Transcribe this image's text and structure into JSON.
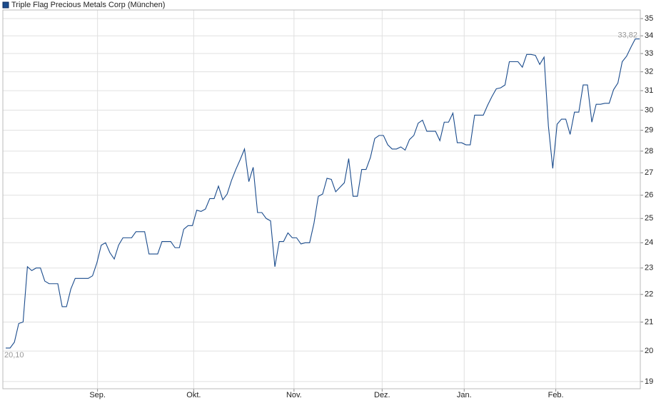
{
  "chart_data": {
    "type": "line",
    "series": [
      {
        "name": "Triple Flag Precious Metals Corp (München)",
        "color": "#1a4b8c",
        "values": [
          20.1,
          20.1,
          20.3,
          20.95,
          21.0,
          23.05,
          22.9,
          23.0,
          23.0,
          22.5,
          22.4,
          22.4,
          22.4,
          21.55,
          21.55,
          22.2,
          22.6,
          22.6,
          22.6,
          22.6,
          22.7,
          23.2,
          23.9,
          24.0,
          23.6,
          23.35,
          23.9,
          24.2,
          24.2,
          24.2,
          24.45,
          24.45,
          24.45,
          23.55,
          23.55,
          23.55,
          24.05,
          24.05,
          24.05,
          23.8,
          23.8,
          24.55,
          24.7,
          24.7,
          25.35,
          25.3,
          25.4,
          25.85,
          25.85,
          26.4,
          25.8,
          26.05,
          26.65,
          27.15,
          27.6,
          28.1,
          26.6,
          27.25,
          25.25,
          25.25,
          25.0,
          24.9,
          23.05,
          24.05,
          24.05,
          24.4,
          24.2,
          24.2,
          23.95,
          24.0,
          24.0,
          24.8,
          25.95,
          26.05,
          26.75,
          26.7,
          26.15,
          26.35,
          26.55,
          27.65,
          25.95,
          25.95,
          27.15,
          27.15,
          27.7,
          28.6,
          28.75,
          28.75,
          28.3,
          28.1,
          28.1,
          28.2,
          28.05,
          28.55,
          28.75,
          29.35,
          29.5,
          28.95,
          28.95,
          28.95,
          28.5,
          29.4,
          29.4,
          29.85,
          28.4,
          28.4,
          28.3,
          28.3,
          29.75,
          29.75,
          29.75,
          30.25,
          30.7,
          31.1,
          31.15,
          31.3,
          32.55,
          32.55,
          32.55,
          32.25,
          32.95,
          32.95,
          32.9,
          32.4,
          32.8,
          29.2,
          27.2,
          29.3,
          29.55,
          29.55,
          28.8,
          29.9,
          29.9,
          31.3,
          31.3,
          29.4,
          30.3,
          30.3,
          30.35,
          30.35,
          31.05,
          31.4,
          32.55,
          32.85,
          33.35,
          33.82,
          33.82
        ],
        "value_labels": [
          "20,10",
          null,
          null,
          null,
          null,
          null,
          null,
          null,
          null,
          null,
          null,
          null,
          null,
          null,
          null,
          null,
          null,
          null,
          null,
          null,
          null,
          null,
          null,
          null,
          null,
          null,
          null,
          null,
          null,
          null,
          null,
          null,
          null,
          null,
          null,
          null,
          null,
          null,
          null,
          null,
          null,
          null,
          null,
          null,
          null,
          null,
          null,
          null,
          null,
          null,
          null,
          null,
          null,
          null,
          null,
          null,
          null,
          null,
          null,
          null,
          null,
          null,
          null,
          null,
          null,
          null,
          null,
          null,
          null,
          null,
          null,
          null,
          null,
          null,
          null,
          null,
          null,
          null,
          null,
          null,
          null,
          null,
          null,
          null,
          null,
          null,
          null,
          null,
          null,
          null,
          null,
          null,
          null,
          null,
          null,
          null,
          null,
          null,
          null,
          null,
          null,
          null,
          null,
          null,
          null,
          null,
          null,
          null,
          null,
          null,
          null,
          null,
          null,
          null,
          null,
          null,
          null,
          null,
          null,
          null,
          null,
          null,
          null,
          null,
          null,
          null,
          null,
          null,
          null,
          null,
          null,
          null,
          null,
          null,
          null,
          null,
          null,
          null,
          null,
          null,
          null,
          null,
          null,
          null,
          null,
          null,
          "33,82"
        ]
      }
    ],
    "xlim": [
      0,
      146
    ],
    "xticks": [
      {
        "value": 21.15,
        "label": "Sep."
      },
      {
        "value": 43.3,
        "label": "Okt."
      },
      {
        "value": 66.4,
        "label": "Nov."
      },
      {
        "value": 86.7,
        "label": "Dez."
      },
      {
        "value": 105.6,
        "label": "Jan."
      },
      {
        "value": 126.7,
        "label": "Feb."
      }
    ],
    "ylim": [
      18.77,
      35.51
    ],
    "yticks": [
      19,
      20,
      21,
      22,
      23,
      24,
      25,
      26,
      27,
      28,
      29,
      30,
      31,
      32,
      33,
      34,
      35
    ],
    "log": true,
    "grid": true,
    "legend": "top-left"
  }
}
